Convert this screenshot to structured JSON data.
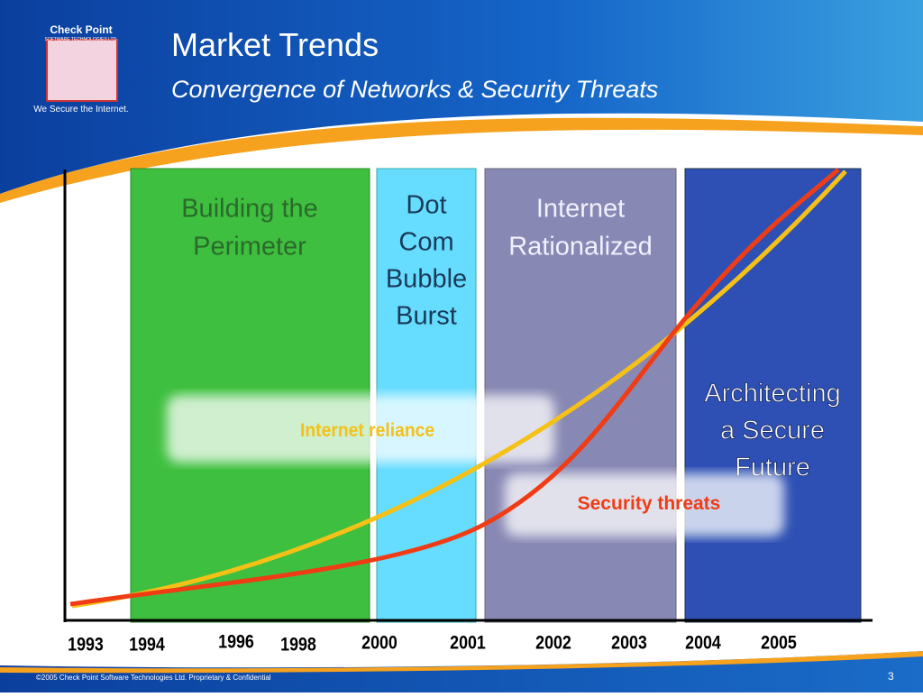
{
  "logo": {
    "name": "Check Point",
    "subname": "SOFTWARE TECHNOLOGIES LTD.",
    "tagline": "We Secure the Internet."
  },
  "header": {
    "title": "Market Trends",
    "subtitle": "Convergence of Networks & Security Threats"
  },
  "phases": [
    {
      "label": [
        "Building the",
        "Perimeter"
      ]
    },
    {
      "label": [
        "Dot",
        "Com",
        "Bubble",
        "Burst"
      ]
    },
    {
      "label": [
        "Internet",
        "Rationalized"
      ]
    },
    {
      "label": [
        "Architecting",
        "a Secure",
        "Future"
      ]
    }
  ],
  "years": [
    "1993",
    "1994",
    "1996",
    "1998",
    "2000",
    "2001",
    "2002",
    "2003",
    "2004",
    "2005"
  ],
  "curves": {
    "reliance": "Internet reliance",
    "threats": "Security threats"
  },
  "footer": {
    "copyright": "©2005 Check Point Software Technologies Ltd. Proprietary & Confidential",
    "page": "3"
  }
}
